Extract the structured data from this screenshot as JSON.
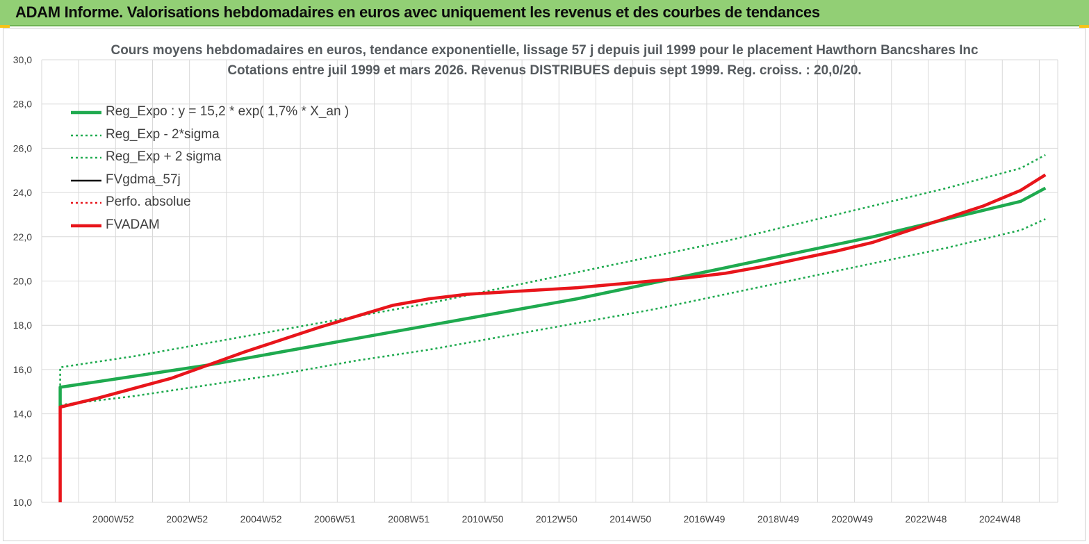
{
  "banner": {
    "title": "ADAM Informe. Valorisations hebdomadaires en euros avec uniquement les revenus et des courbes de tendances"
  },
  "colors": {
    "banner_bg": "#92cf75",
    "trend_green": "#1faa4f",
    "fvadam_red": "#e8151b",
    "fvgdma_black": "#000000",
    "grid": "#d9d9d9"
  },
  "chart_data": {
    "type": "line",
    "title": "Cours moyens hebdomadaires en euros, tendance exponentielle, lissage 57 j depuis juil 1999 pour le placement Hawthorn Bancshares Inc",
    "subtitle": "Cotations entre juil 1999 et mars 2026. Revenus DISTRIBUES depuis sept 1999. Reg. croiss. : 20,0/20.",
    "xlabel": "",
    "ylabel": "",
    "ylim": [
      10,
      30
    ],
    "xlim": [
      "1999-01",
      "2026-07"
    ],
    "y_ticks": [
      "10,0",
      "12,0",
      "14,0",
      "16,0",
      "18,0",
      "20,0",
      "22,0",
      "24,0",
      "26,0",
      "28,0",
      "30,0"
    ],
    "x_ticks": [
      {
        "label": "2000W52",
        "x": "2000-12"
      },
      {
        "label": "2002W52",
        "x": "2002-12"
      },
      {
        "label": "2004W52",
        "x": "2004-12"
      },
      {
        "label": "2006W51",
        "x": "2006-12"
      },
      {
        "label": "2008W51",
        "x": "2008-12"
      },
      {
        "label": "2010W50",
        "x": "2010-12"
      },
      {
        "label": "2012W50",
        "x": "2012-12"
      },
      {
        "label": "2014W50",
        "x": "2014-12"
      },
      {
        "label": "2016W49",
        "x": "2016-12"
      },
      {
        "label": "2018W49",
        "x": "2018-12"
      },
      {
        "label": "2020W49",
        "x": "2020-12"
      },
      {
        "label": "2022W48",
        "x": "2022-12"
      },
      {
        "label": "2024W48",
        "x": "2024-12"
      }
    ],
    "grid": true,
    "legend_position": "top-left",
    "series": [
      {
        "name": "Reg_Expo : y = 15,2 * exp( 1,7% *  X_an )",
        "style": "solid-thick",
        "color": "#1faa4f",
        "x": [
          "1999-07",
          "2001-07",
          "2003-07",
          "2005-07",
          "2007-07",
          "2009-07",
          "2011-07",
          "2013-07",
          "2015-07",
          "2017-07",
          "2019-07",
          "2021-07",
          "2023-07",
          "2025-07",
          "2026-03"
        ],
        "y": [
          15.2,
          15.7,
          16.2,
          16.8,
          17.4,
          18.0,
          18.6,
          19.2,
          19.9,
          20.6,
          21.3,
          22.0,
          22.8,
          23.6,
          24.2
        ]
      },
      {
        "name": "Reg_Exp - 2*sigma",
        "style": "dotted",
        "color": "#1faa4f",
        "x": [
          "1999-07",
          "2001-07",
          "2003-07",
          "2005-07",
          "2007-07",
          "2009-07",
          "2011-07",
          "2013-07",
          "2015-07",
          "2017-07",
          "2019-07",
          "2021-07",
          "2023-07",
          "2025-07",
          "2026-03"
        ],
        "y": [
          14.4,
          14.8,
          15.3,
          15.8,
          16.4,
          16.9,
          17.5,
          18.1,
          18.7,
          19.4,
          20.1,
          20.8,
          21.5,
          22.3,
          22.8
        ]
      },
      {
        "name": "Reg_Exp + 2 sigma",
        "style": "dotted",
        "color": "#1faa4f",
        "x": [
          "1999-07",
          "2001-07",
          "2003-07",
          "2005-07",
          "2007-07",
          "2009-07",
          "2011-07",
          "2013-07",
          "2015-07",
          "2017-07",
          "2019-07",
          "2021-07",
          "2023-07",
          "2025-07",
          "2026-03"
        ],
        "y": [
          16.1,
          16.6,
          17.2,
          17.8,
          18.4,
          19.0,
          19.7,
          20.4,
          21.1,
          21.8,
          22.6,
          23.4,
          24.2,
          25.1,
          25.7
        ]
      },
      {
        "name": "FVgdma_57j",
        "style": "solid",
        "color": "#000000",
        "x": [],
        "y": []
      },
      {
        "name": "Perfo. absolue",
        "style": "dotted",
        "color": "#e8151b",
        "x": [],
        "y": []
      },
      {
        "name": "FVADAM",
        "style": "solid-thick",
        "color": "#e8151b",
        "x": [
          "1999-07",
          "2000-07",
          "2002-07",
          "2004-07",
          "2006-07",
          "2008-07",
          "2009-07",
          "2010-07",
          "2011-07",
          "2012-07",
          "2013-07",
          "2014-07",
          "2015-07",
          "2016-07",
          "2017-07",
          "2018-07",
          "2019-07",
          "2020-07",
          "2021-07",
          "2022-07",
          "2023-07",
          "2024-07",
          "2025-07",
          "2026-03"
        ],
        "y": [
          14.3,
          14.7,
          15.6,
          16.8,
          17.9,
          18.9,
          19.2,
          19.4,
          19.5,
          19.6,
          19.7,
          19.85,
          20.0,
          20.15,
          20.35,
          20.65,
          21.0,
          21.35,
          21.75,
          22.3,
          22.85,
          23.4,
          24.1,
          24.8
        ]
      }
    ]
  }
}
